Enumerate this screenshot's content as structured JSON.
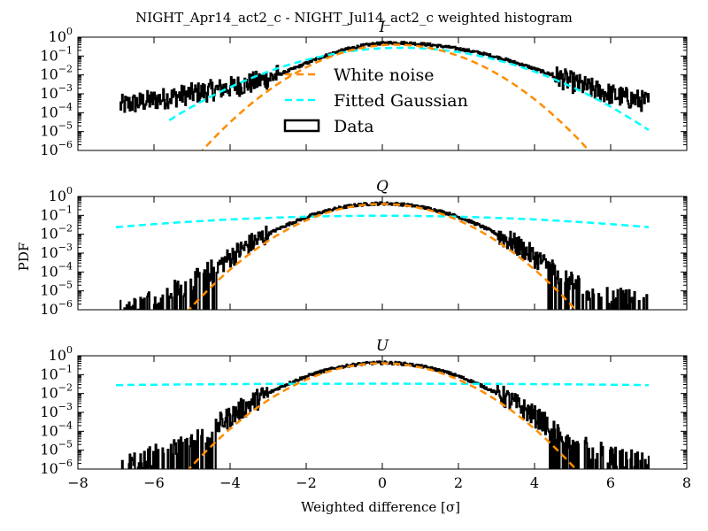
{
  "chart_data": {
    "type": "line",
    "title": "NIGHT_Apr14_act2_c - NIGHT_Jul14_act2_c weighted histogram",
    "xlabel": "Weighted difference [σ]",
    "ylabel": "PDF",
    "xlim": [
      -8,
      8
    ],
    "ylim": [
      1e-06,
      1
    ],
    "yscale": "log",
    "grid": false,
    "xticks": [
      -8,
      -6,
      -4,
      -2,
      0,
      2,
      4,
      6,
      8
    ],
    "xtick_labels": [
      "−8",
      "−6",
      "−4",
      "−2",
      "0",
      "2",
      "4",
      "6",
      "8"
    ],
    "ytick_exponents": [
      "0",
      "-1",
      "-2",
      "-3",
      "-4",
      "-5",
      "-6"
    ],
    "ytick_base": "10",
    "legend": {
      "placement": "inside-upper-center (panel I)",
      "entries": [
        {
          "label": "White noise",
          "color": "#ff8c00",
          "style": "dashed"
        },
        {
          "label": "Fitted Gaussian",
          "color": "#00ffff",
          "style": "dashed"
        },
        {
          "label": "Data",
          "color": "#000000",
          "style": "box"
        }
      ]
    },
    "panels": [
      {
        "title": "I",
        "data": {
          "center": 0.3,
          "left_sigma": 1.0,
          "right_sigma": 1.45,
          "left_limit": -6.9,
          "right_limit": 7.0,
          "spike_min_x": -6.9,
          "spike_max_x": 7.0
        },
        "white_noise": {
          "mean": 0.35,
          "sigma": 1.0
        },
        "fitted_gaussian": {
          "mean": 0.5,
          "sigma": 1.45,
          "x_range": [
            -5.6,
            7.0
          ]
        }
      },
      {
        "title": "Q",
        "data": {
          "center": 0.0,
          "left_sigma": 1.1,
          "right_sigma": 1.1,
          "left_limit": -6.9,
          "right_limit": 7.0
        },
        "white_noise": {
          "mean": 0.0,
          "sigma": 1.0
        },
        "fitted_gaussian": {
          "mean": 0.0,
          "sigma": 4.2,
          "x_range": [
            -7.0,
            7.0
          ]
        }
      },
      {
        "title": "U",
        "data": {
          "center": 0.0,
          "left_sigma": 1.1,
          "right_sigma": 1.1,
          "left_limit": -6.9,
          "right_limit": 7.0
        },
        "white_noise": {
          "mean": 0.0,
          "sigma": 1.0
        },
        "fitted_gaussian": {
          "mean": 0.0,
          "sigma": 12.0,
          "x_range": [
            -7.0,
            7.0
          ]
        }
      }
    ]
  }
}
